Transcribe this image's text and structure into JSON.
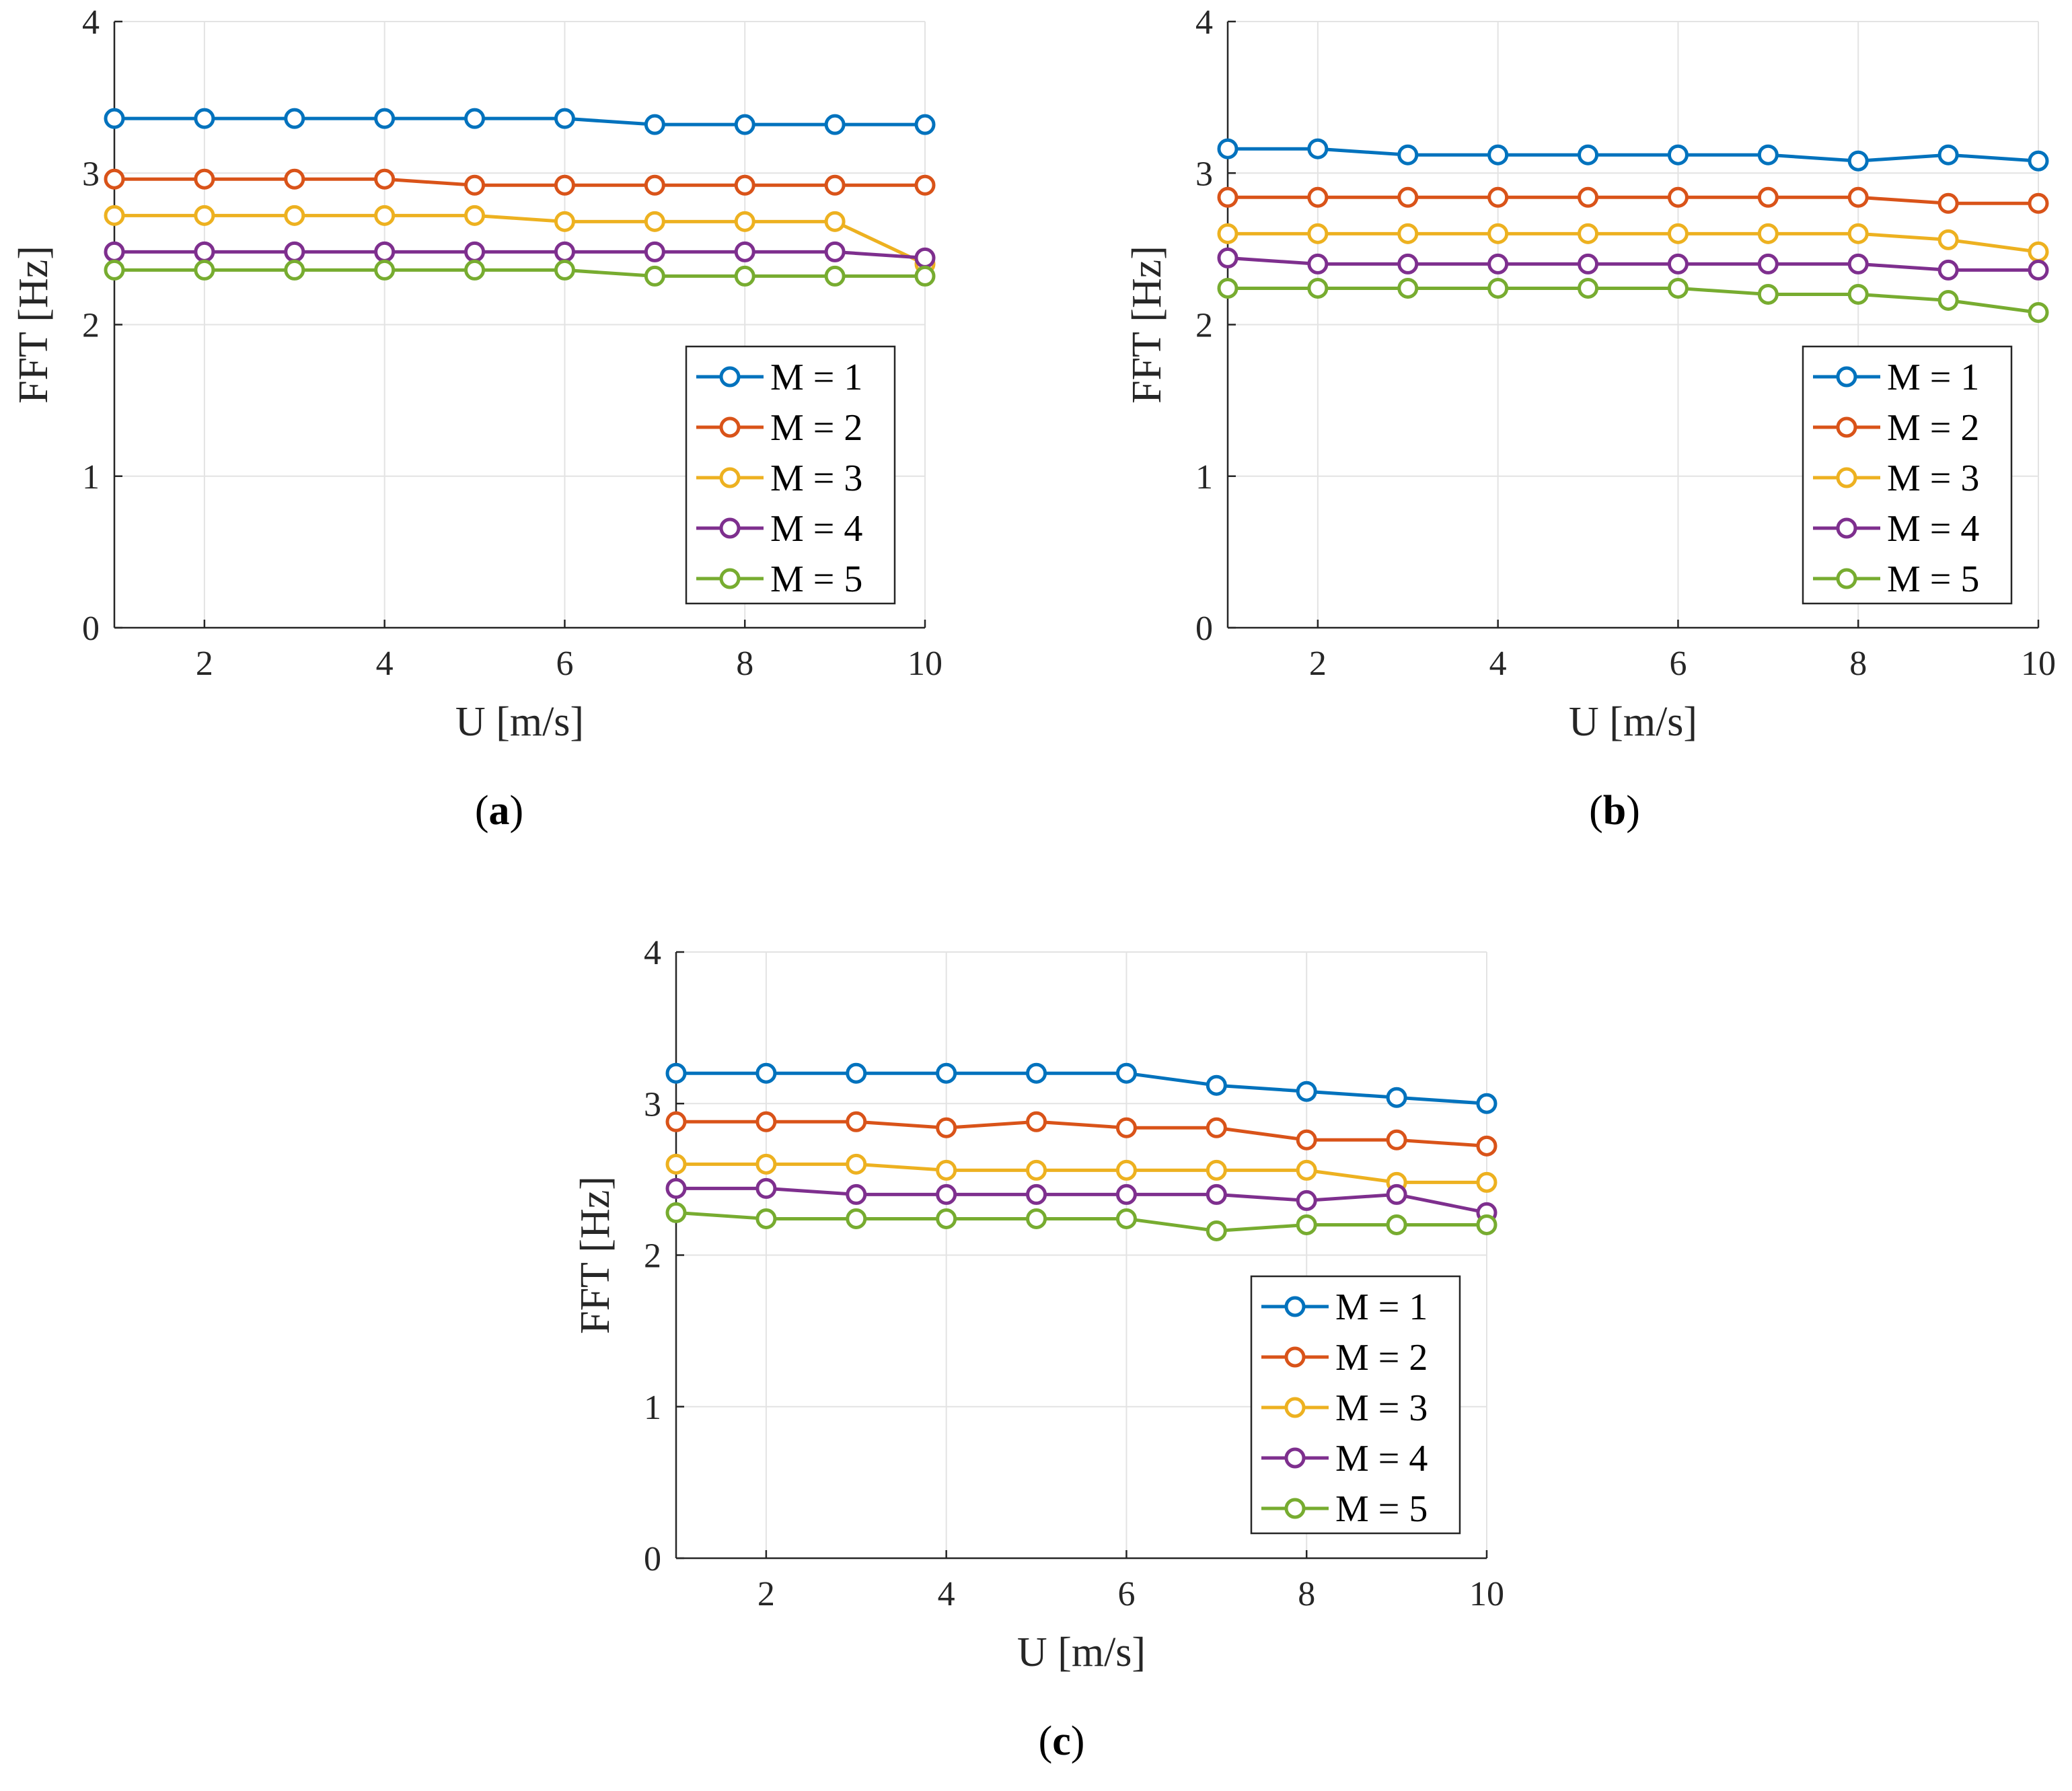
{
  "series_colors": [
    "#0072BD",
    "#D95319",
    "#EDB120",
    "#7E2F8E",
    "#77AC30"
  ],
  "chart_data": [
    {
      "type": "line",
      "caption": "a",
      "xlabel": "U [m/s]",
      "ylabel": "FFT [Hz]",
      "xlim": [
        1,
        10
      ],
      "ylim": [
        0,
        4
      ],
      "xticks": [
        2,
        4,
        6,
        8,
        10
      ],
      "yticks": [
        0,
        1,
        2,
        3,
        4
      ],
      "grid": true,
      "legend_position": "bottom-right",
      "x": [
        1,
        2,
        3,
        4,
        5,
        6,
        7,
        8,
        9,
        10
      ],
      "series": [
        {
          "name": "M = 1",
          "values": [
            3.36,
            3.36,
            3.36,
            3.36,
            3.36,
            3.36,
            3.32,
            3.32,
            3.32,
            3.32
          ]
        },
        {
          "name": "M = 2",
          "values": [
            2.96,
            2.96,
            2.96,
            2.96,
            2.92,
            2.92,
            2.92,
            2.92,
            2.92,
            2.92
          ]
        },
        {
          "name": "M = 3",
          "values": [
            2.72,
            2.72,
            2.72,
            2.72,
            2.72,
            2.68,
            2.68,
            2.68,
            2.68,
            2.4
          ]
        },
        {
          "name": "M = 4",
          "values": [
            2.48,
            2.48,
            2.48,
            2.48,
            2.48,
            2.48,
            2.48,
            2.48,
            2.48,
            2.44
          ]
        },
        {
          "name": "M = 5",
          "values": [
            2.36,
            2.36,
            2.36,
            2.36,
            2.36,
            2.36,
            2.32,
            2.32,
            2.32,
            2.32
          ]
        }
      ]
    },
    {
      "type": "line",
      "caption": "b",
      "xlabel": "U [m/s]",
      "ylabel": "FFT [Hz]",
      "xlim": [
        1,
        10
      ],
      "ylim": [
        0,
        4
      ],
      "xticks": [
        2,
        4,
        6,
        8,
        10
      ],
      "yticks": [
        0,
        1,
        2,
        3,
        4
      ],
      "grid": true,
      "legend_position": "bottom-right",
      "x": [
        1,
        2,
        3,
        4,
        5,
        6,
        7,
        8,
        9,
        10
      ],
      "series": [
        {
          "name": "M = 1",
          "values": [
            3.16,
            3.16,
            3.12,
            3.12,
            3.12,
            3.12,
            3.12,
            3.08,
            3.12,
            3.08
          ]
        },
        {
          "name": "M = 2",
          "values": [
            2.84,
            2.84,
            2.84,
            2.84,
            2.84,
            2.84,
            2.84,
            2.84,
            2.8,
            2.8
          ]
        },
        {
          "name": "M = 3",
          "values": [
            2.6,
            2.6,
            2.6,
            2.6,
            2.6,
            2.6,
            2.6,
            2.6,
            2.56,
            2.48
          ]
        },
        {
          "name": "M = 4",
          "values": [
            2.44,
            2.4,
            2.4,
            2.4,
            2.4,
            2.4,
            2.4,
            2.4,
            2.36,
            2.36
          ]
        },
        {
          "name": "M = 5",
          "values": [
            2.24,
            2.24,
            2.24,
            2.24,
            2.24,
            2.24,
            2.2,
            2.2,
            2.16,
            2.08
          ]
        }
      ]
    },
    {
      "type": "line",
      "caption": "c",
      "xlabel": "U [m/s]",
      "ylabel": "FFT [Hz]",
      "xlim": [
        1,
        10
      ],
      "ylim": [
        0,
        4
      ],
      "xticks": [
        2,
        4,
        6,
        8,
        10
      ],
      "yticks": [
        0,
        1,
        2,
        3,
        4
      ],
      "grid": true,
      "legend_position": "bottom-right",
      "x": [
        1,
        2,
        3,
        4,
        5,
        6,
        7,
        8,
        9,
        10
      ],
      "series": [
        {
          "name": "M = 1",
          "values": [
            3.2,
            3.2,
            3.2,
            3.2,
            3.2,
            3.2,
            3.12,
            3.08,
            3.04,
            3.0
          ]
        },
        {
          "name": "M = 2",
          "values": [
            2.88,
            2.88,
            2.88,
            2.84,
            2.88,
            2.84,
            2.84,
            2.76,
            2.76,
            2.72
          ]
        },
        {
          "name": "M = 3",
          "values": [
            2.6,
            2.6,
            2.6,
            2.56,
            2.56,
            2.56,
            2.56,
            2.56,
            2.48,
            2.48
          ]
        },
        {
          "name": "M = 4",
          "values": [
            2.44,
            2.44,
            2.4,
            2.4,
            2.4,
            2.4,
            2.4,
            2.36,
            2.4,
            2.28
          ]
        },
        {
          "name": "M = 5",
          "values": [
            2.28,
            2.24,
            2.24,
            2.24,
            2.24,
            2.24,
            2.16,
            2.2,
            2.2,
            2.2
          ]
        }
      ]
    }
  ]
}
